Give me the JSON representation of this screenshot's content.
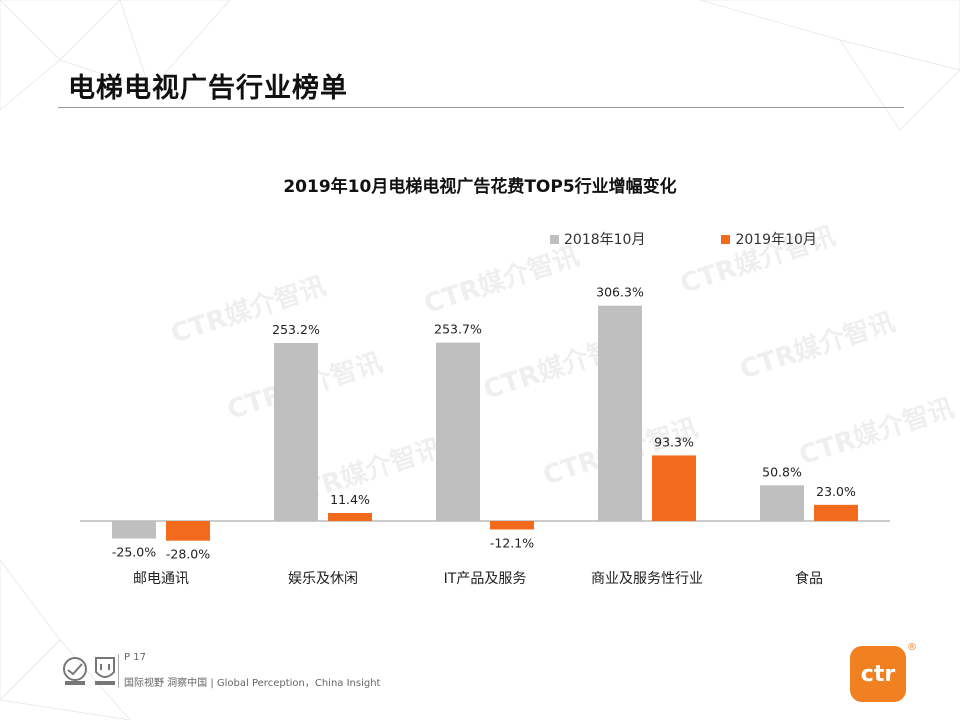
{
  "page": {
    "title": "电梯电视广告行业榜单",
    "footer_page": "P 17",
    "footer_slogan": "国际视野 洞察中国 | Global Perception，China Insight",
    "logo_text": "ctr",
    "logo_reg_mark": "®"
  },
  "colors": {
    "series_2018": "#bfbfbf",
    "series_2019": "#f26b1d",
    "brand_orange": "#f08020"
  },
  "chart_data": {
    "type": "bar",
    "title": "2019年10月电梯电视广告花费TOP5行业增幅变化",
    "categories": [
      "邮电通讯",
      "娱乐及休闲",
      "IT产品及服务",
      "商业及服务性行业",
      "食品"
    ],
    "series": [
      {
        "name": "2018年10月",
        "values": [
          -25.0,
          253.2,
          253.7,
          306.3,
          50.8
        ],
        "labels": [
          "-25.0%",
          "253.2%",
          "253.7%",
          "306.3%",
          "50.8%"
        ]
      },
      {
        "name": "2019年10月",
        "values": [
          -28.0,
          11.4,
          -12.1,
          93.3,
          23.0
        ],
        "labels": [
          "-28.0%",
          "11.4%",
          "-12.1%",
          "93.3%",
          "23.0%"
        ]
      }
    ],
    "value_unit": "%",
    "legend": "top-right",
    "grid": false,
    "xlabel": "",
    "ylabel": ""
  }
}
